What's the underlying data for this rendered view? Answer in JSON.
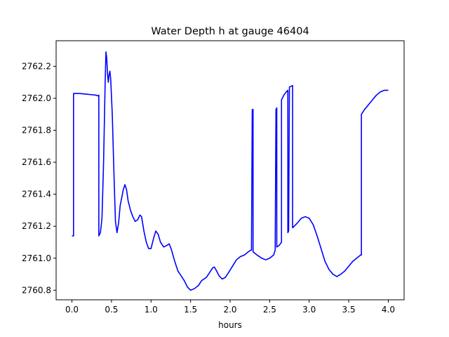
{
  "chart_data": {
    "type": "line",
    "title": "Water Depth h at gauge 46404",
    "xlabel": "hours",
    "ylabel": "",
    "xlim": [
      -0.2,
      4.2
    ],
    "ylim": [
      2760.74,
      2762.36
    ],
    "xticks": [
      {
        "v": 0.0,
        "label": "0.0"
      },
      {
        "v": 0.5,
        "label": "0.5"
      },
      {
        "v": 1.0,
        "label": "1.0"
      },
      {
        "v": 1.5,
        "label": "1.5"
      },
      {
        "v": 2.0,
        "label": "2.0"
      },
      {
        "v": 2.5,
        "label": "2.5"
      },
      {
        "v": 3.0,
        "label": "3.0"
      },
      {
        "v": 3.5,
        "label": "3.5"
      },
      {
        "v": 4.0,
        "label": "4.0"
      }
    ],
    "yticks": [
      {
        "v": 2760.8,
        "label": "2760.8"
      },
      {
        "v": 2761.0,
        "label": "2761.0"
      },
      {
        "v": 2761.2,
        "label": "2761.2"
      },
      {
        "v": 2761.4,
        "label": "2761.4"
      },
      {
        "v": 2761.6,
        "label": "2761.6"
      },
      {
        "v": 2761.8,
        "label": "2761.8"
      },
      {
        "v": 2762.0,
        "label": "2762.0"
      },
      {
        "v": 2762.2,
        "label": "2762.2"
      }
    ],
    "grid": false,
    "series": [
      {
        "color": "#0000ff",
        "points": [
          [
            0.0,
            2761.14
          ],
          [
            0.02,
            2761.14
          ],
          [
            0.02,
            2762.03
          ],
          [
            0.1,
            2762.03
          ],
          [
            0.2,
            2762.025
          ],
          [
            0.3,
            2762.02
          ],
          [
            0.33,
            2762.015
          ],
          [
            0.34,
            2762.02
          ],
          [
            0.34,
            2761.14
          ],
          [
            0.36,
            2761.16
          ],
          [
            0.38,
            2761.25
          ],
          [
            0.4,
            2761.6
          ],
          [
            0.42,
            2762.1
          ],
          [
            0.43,
            2762.29
          ],
          [
            0.44,
            2762.25
          ],
          [
            0.45,
            2762.15
          ],
          [
            0.46,
            2762.1
          ],
          [
            0.47,
            2762.15
          ],
          [
            0.48,
            2762.17
          ],
          [
            0.49,
            2762.12
          ],
          [
            0.51,
            2761.9
          ],
          [
            0.53,
            2761.55
          ],
          [
            0.55,
            2761.23
          ],
          [
            0.57,
            2761.16
          ],
          [
            0.59,
            2761.22
          ],
          [
            0.61,
            2761.33
          ],
          [
            0.63,
            2761.38
          ],
          [
            0.65,
            2761.43
          ],
          [
            0.67,
            2761.46
          ],
          [
            0.69,
            2761.43
          ],
          [
            0.71,
            2761.36
          ],
          [
            0.74,
            2761.3
          ],
          [
            0.77,
            2761.26
          ],
          [
            0.8,
            2761.23
          ],
          [
            0.83,
            2761.24
          ],
          [
            0.86,
            2761.27
          ],
          [
            0.88,
            2761.26
          ],
          [
            0.91,
            2761.17
          ],
          [
            0.94,
            2761.1
          ],
          [
            0.97,
            2761.06
          ],
          [
            1.0,
            2761.06
          ],
          [
            1.03,
            2761.12
          ],
          [
            1.06,
            2761.17
          ],
          [
            1.09,
            2761.15
          ],
          [
            1.12,
            2761.1
          ],
          [
            1.16,
            2761.07
          ],
          [
            1.2,
            2761.08
          ],
          [
            1.23,
            2761.09
          ],
          [
            1.26,
            2761.05
          ],
          [
            1.3,
            2760.98
          ],
          [
            1.34,
            2760.92
          ],
          [
            1.38,
            2760.89
          ],
          [
            1.42,
            2760.86
          ],
          [
            1.46,
            2760.82
          ],
          [
            1.5,
            2760.8
          ],
          [
            1.55,
            2760.81
          ],
          [
            1.6,
            2760.83
          ],
          [
            1.64,
            2760.86
          ],
          [
            1.7,
            2760.88
          ],
          [
            1.74,
            2760.91
          ],
          [
            1.78,
            2760.94
          ],
          [
            1.8,
            2760.945
          ],
          [
            1.83,
            2760.92
          ],
          [
            1.86,
            2760.89
          ],
          [
            1.9,
            2760.87
          ],
          [
            1.94,
            2760.88
          ],
          [
            1.98,
            2760.91
          ],
          [
            2.03,
            2760.95
          ],
          [
            2.08,
            2760.99
          ],
          [
            2.13,
            2761.01
          ],
          [
            2.18,
            2761.02
          ],
          [
            2.23,
            2761.04
          ],
          [
            2.26,
            2761.05
          ],
          [
            2.27,
            2761.05
          ],
          [
            2.28,
            2761.93
          ],
          [
            2.29,
            2761.93
          ],
          [
            2.29,
            2761.04
          ],
          [
            2.34,
            2761.02
          ],
          [
            2.4,
            2761.0
          ],
          [
            2.45,
            2760.99
          ],
          [
            2.5,
            2761.0
          ],
          [
            2.55,
            2761.02
          ],
          [
            2.57,
            2761.05
          ],
          [
            2.58,
            2761.93
          ],
          [
            2.59,
            2761.94
          ],
          [
            2.59,
            2761.07
          ],
          [
            2.62,
            2761.08
          ],
          [
            2.65,
            2761.1
          ],
          [
            2.65,
            2761.99
          ],
          [
            2.68,
            2762.02
          ],
          [
            2.71,
            2762.04
          ],
          [
            2.73,
            2762.05
          ],
          [
            2.73,
            2761.16
          ],
          [
            2.74,
            2761.17
          ],
          [
            2.75,
            2762.07
          ],
          [
            2.79,
            2762.08
          ],
          [
            2.79,
            2761.19
          ],
          [
            2.85,
            2761.22
          ],
          [
            2.9,
            2761.25
          ],
          [
            2.95,
            2761.26
          ],
          [
            3.0,
            2761.25
          ],
          [
            3.05,
            2761.21
          ],
          [
            3.1,
            2761.14
          ],
          [
            3.15,
            2761.06
          ],
          [
            3.2,
            2760.98
          ],
          [
            3.25,
            2760.93
          ],
          [
            3.3,
            2760.9
          ],
          [
            3.35,
            2760.885
          ],
          [
            3.4,
            2760.9
          ],
          [
            3.45,
            2760.92
          ],
          [
            3.5,
            2760.95
          ],
          [
            3.55,
            2760.98
          ],
          [
            3.6,
            2761.0
          ],
          [
            3.65,
            2761.02
          ],
          [
            3.66,
            2761.02
          ],
          [
            3.66,
            2761.9
          ],
          [
            3.7,
            2761.93
          ],
          [
            3.75,
            2761.96
          ],
          [
            3.8,
            2761.99
          ],
          [
            3.85,
            2762.02
          ],
          [
            3.9,
            2762.04
          ],
          [
            3.95,
            2762.05
          ],
          [
            4.0,
            2762.05
          ]
        ]
      }
    ]
  }
}
